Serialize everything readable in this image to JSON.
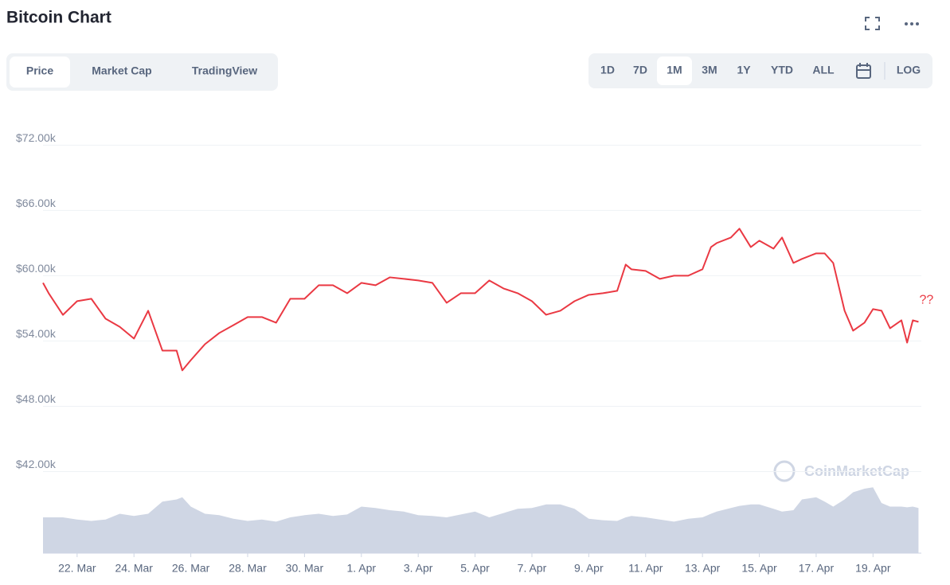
{
  "ui": {
    "title": "Bitcoin Chart",
    "tabs": [
      "Price",
      "Market Cap",
      "TradingView"
    ],
    "ranges": [
      "1D",
      "7D",
      "1M",
      "3M",
      "1Y",
      "YTD",
      "ALL"
    ],
    "log": "LOG",
    "watermark": "CoinMarketCap"
  },
  "chart_data": {
    "type": "line",
    "x": [
      20.8,
      21,
      21.5,
      22,
      22.5,
      23,
      23.5,
      24,
      24.5,
      25,
      25.5,
      25.7,
      26,
      26.5,
      27,
      27.5,
      28,
      28.5,
      29,
      29.5,
      30,
      30.5,
      31,
      31.5,
      32,
      32.5,
      33,
      33.5,
      34,
      34.5,
      35,
      35.5,
      36,
      36.5,
      37,
      37.5,
      38,
      38.5,
      39,
      39.5,
      40,
      40.5,
      41,
      41.3,
      41.5,
      42,
      42.5,
      43,
      43.5,
      44,
      44.3,
      44.5,
      45,
      45.3,
      45.7,
      46,
      46.5,
      46.8,
      47.2,
      47.5,
      48,
      48.3,
      48.6,
      49,
      49.3,
      49.7,
      50,
      50.3,
      50.6,
      51,
      51.2,
      51.4,
      51.6
    ],
    "values": [
      59340,
      58390,
      56400,
      57660,
      57880,
      56050,
      55300,
      54220,
      56780,
      53120,
      53120,
      51300,
      52240,
      53710,
      54730,
      55460,
      56200,
      56200,
      55680,
      57880,
      57880,
      59120,
      59120,
      58390,
      59340,
      59120,
      59850,
      59710,
      59560,
      59340,
      57510,
      58390,
      58390,
      59560,
      58830,
      58390,
      57660,
      56410,
      56780,
      57660,
      58240,
      58390,
      58610,
      61020,
      60590,
      60440,
      59710,
      60000,
      60000,
      60590,
      62630,
      63000,
      63510,
      64320,
      62630,
      63220,
      62490,
      63510,
      61170,
      61540,
      62050,
      62050,
      61170,
      56780,
      54950,
      55680,
      56930,
      56780,
      55170,
      55900,
      53850,
      55900,
      55760
    ],
    "color": "#ea3943",
    "volume": {
      "values": [
        50,
        50,
        50,
        47,
        45,
        47,
        55,
        52,
        55,
        72,
        75,
        78,
        65,
        55,
        53,
        48,
        45,
        47,
        44,
        50,
        53,
        55,
        52,
        54,
        65,
        63,
        60,
        58,
        53,
        52,
        50,
        54,
        58,
        50,
        56,
        62,
        63,
        68,
        68,
        62,
        48,
        46,
        45,
        50,
        52,
        50,
        47,
        44,
        48,
        50,
        55,
        58,
        63,
        66,
        68,
        68,
        62,
        58,
        60,
        75,
        78,
        72,
        65,
        75,
        85,
        90,
        92,
        70,
        65,
        65,
        64,
        65,
        63
      ],
      "color": "#cfd6e4",
      "ylim": [
        0,
        100
      ]
    },
    "annotation": "??",
    "xlim": [
      20.8,
      51.7
    ],
    "xticks": [
      {
        "value": 22,
        "label": "22. Mar"
      },
      {
        "value": 24,
        "label": "24. Mar"
      },
      {
        "value": 26,
        "label": "26. Mar"
      },
      {
        "value": 28,
        "label": "28. Mar"
      },
      {
        "value": 30,
        "label": "30. Mar"
      },
      {
        "value": 32,
        "label": "1. Apr"
      },
      {
        "value": 34,
        "label": "3. Apr"
      },
      {
        "value": 36,
        "label": "5. Apr"
      },
      {
        "value": 38,
        "label": "7. Apr"
      },
      {
        "value": 40,
        "label": "9. Apr"
      },
      {
        "value": 42,
        "label": "11. Apr"
      },
      {
        "value": 44,
        "label": "13. Apr"
      },
      {
        "value": 46,
        "label": "15. Apr"
      },
      {
        "value": 48,
        "label": "17. Apr"
      },
      {
        "value": 50,
        "label": "19. Apr"
      }
    ],
    "ylim": [
      34500,
      74000
    ],
    "yticks": [
      {
        "value": 42000,
        "label": "$42.00k"
      },
      {
        "value": 48000,
        "label": "$48.00k"
      },
      {
        "value": 54000,
        "label": "$54.00k"
      },
      {
        "value": 60000,
        "label": "$60.00k"
      },
      {
        "value": 66000,
        "label": "$66.00k"
      },
      {
        "value": 72000,
        "label": "$72.00k"
      }
    ],
    "grid": true
  }
}
